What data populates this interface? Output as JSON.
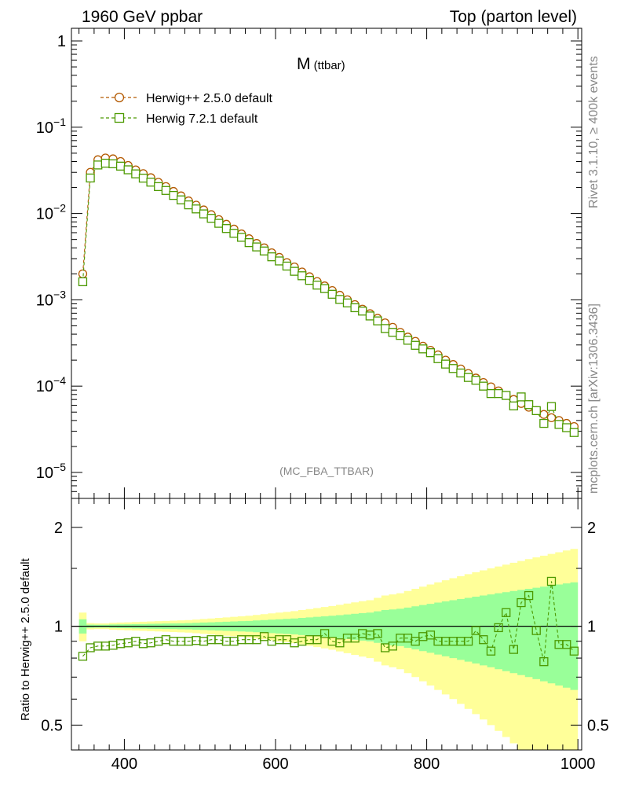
{
  "header": {
    "left": "1960 GeV ppbar",
    "right": "Top (parton level)"
  },
  "side": {
    "rivet": "Rivet 3.1.10, ≥ 400k events",
    "site": "mcplots.cern.ch [arXiv:1306.3436]"
  },
  "chart_data": [
    {
      "type": "line",
      "title_main": "M",
      "title_sub": " (ttbar)",
      "analysis": "(MC_FBA_TTBAR)",
      "yscale": "log",
      "xlim": [
        330,
        1005
      ],
      "ylim": [
        5e-06,
        1.4
      ],
      "ytick_labels": [
        {
          "base": "1",
          "exp": ""
        },
        {
          "base": "10",
          "exp": "−1"
        },
        {
          "base": "10",
          "exp": "−2"
        },
        {
          "base": "10",
          "exp": "−3"
        },
        {
          "base": "10",
          "exp": "−4"
        },
        {
          "base": "10",
          "exp": "−5"
        }
      ],
      "legend_position": "top-left",
      "series": [
        {
          "name": "Herwig++ 2.5.0 default",
          "color": "#b35900",
          "marker": "circle",
          "x": [
            345,
            355,
            365,
            375,
            385,
            395,
            405,
            415,
            425,
            435,
            445,
            455,
            465,
            475,
            485,
            495,
            505,
            515,
            525,
            535,
            545,
            555,
            565,
            575,
            585,
            595,
            605,
            615,
            625,
            635,
            645,
            655,
            665,
            675,
            685,
            695,
            705,
            715,
            725,
            735,
            745,
            755,
            765,
            775,
            785,
            795,
            805,
            815,
            825,
            835,
            845,
            855,
            865,
            875,
            885,
            895,
            905,
            915,
            925,
            935,
            945,
            955,
            965,
            975,
            985,
            995
          ],
          "y": [
            0.002,
            0.03,
            0.042,
            0.044,
            0.043,
            0.04,
            0.036,
            0.032,
            0.029,
            0.026,
            0.023,
            0.0205,
            0.018,
            0.016,
            0.014,
            0.0125,
            0.011,
            0.0097,
            0.0085,
            0.0075,
            0.0066,
            0.0058,
            0.0051,
            0.0045,
            0.004,
            0.0035,
            0.0031,
            0.0027,
            0.0024,
            0.0021,
            0.00185,
            0.00163,
            0.00145,
            0.00128,
            0.00113,
            0.001,
            0.00088,
            0.00078,
            0.00069,
            0.00061,
            0.00054,
            0.00048,
            0.00042,
            0.00037,
            0.00033,
            0.00029,
            0.00026,
            0.00023,
            0.0002,
            0.000178,
            0.000158,
            0.00014,
            0.000124,
            0.00011,
            9.8e-05,
            8.8e-05,
            7.8e-05,
            7e-05,
            6.3e-05,
            5.7e-05,
            5.2e-05,
            4.7e-05,
            4.3e-05,
            4e-05,
            3.7e-05,
            3.4e-05
          ]
        },
        {
          "name": "Herwig 7.2.1 default",
          "color": "#4c9900",
          "marker": "square",
          "x": [
            345,
            355,
            365,
            375,
            385,
            395,
            405,
            415,
            425,
            435,
            445,
            455,
            465,
            475,
            485,
            495,
            505,
            515,
            525,
            535,
            545,
            555,
            565,
            575,
            585,
            595,
            605,
            615,
            625,
            635,
            645,
            655,
            665,
            675,
            685,
            695,
            705,
            715,
            725,
            735,
            745,
            755,
            765,
            775,
            785,
            795,
            805,
            815,
            825,
            835,
            845,
            855,
            865,
            875,
            885,
            895,
            905,
            915,
            925,
            935,
            945,
            955,
            965,
            975,
            985,
            995
          ],
          "y": [
            0.00162,
            0.0258,
            0.0365,
            0.0383,
            0.0377,
            0.0354,
            0.0321,
            0.0288,
            0.0257,
            0.0231,
            0.0205,
            0.0185,
            0.0162,
            0.0144,
            0.0126,
            0.0113,
            0.0099,
            0.0088,
            0.0077,
            0.0067,
            0.0059,
            0.0053,
            0.0046,
            0.0041,
            0.00368,
            0.00315,
            0.00282,
            0.00246,
            0.00214,
            0.0019,
            0.00168,
            0.00148,
            0.00135,
            0.00116,
            0.00101,
            0.00092,
            0.00081,
            0.00074,
            0.00065,
            0.00057,
            0.000465,
            0.00042,
            0.000387,
            0.00034,
            0.000297,
            0.00027,
            0.000244,
            0.000208,
            0.00018,
            0.00016,
            0.000142,
            0.000126,
            0.000117,
            0.0001,
            8.2e-05,
            8.2e-05,
            7.8e-05,
            5.9e-05,
            7.5e-05,
            6.1e-05,
            5.2e-05,
            3.7e-05,
            5.8e-05,
            3.6e-05,
            3.3e-05,
            2.9e-05
          ]
        }
      ]
    },
    {
      "type": "line",
      "ylabel": "Ratio to Herwig++ 2.5.0 default",
      "ylim": [
        0.42,
        2.45
      ],
      "ytick_labels": [
        "2",
        "1",
        "0.5"
      ],
      "xtick_labels": [
        "400",
        "600",
        "800",
        "1000"
      ],
      "reference": 1.0,
      "band_inner_halfwidth": [
        0.05,
        0.011,
        0.01,
        0.01,
        0.012,
        0.013,
        0.014,
        0.015,
        0.016,
        0.017,
        0.018,
        0.019,
        0.02,
        0.021,
        0.022,
        0.024,
        0.026,
        0.028,
        0.03,
        0.032,
        0.034,
        0.036,
        0.038,
        0.041,
        0.044,
        0.047,
        0.05,
        0.053,
        0.056,
        0.06,
        0.064,
        0.068,
        0.072,
        0.076,
        0.081,
        0.086,
        0.091,
        0.096,
        0.1,
        0.11,
        0.12,
        0.125,
        0.13,
        0.14,
        0.15,
        0.16,
        0.17,
        0.18,
        0.19,
        0.2,
        0.21,
        0.22,
        0.23,
        0.24,
        0.25,
        0.26,
        0.27,
        0.28,
        0.29,
        0.3,
        0.31,
        0.32,
        0.33,
        0.34,
        0.35,
        0.36
      ],
      "band_outer_halfwidth": [
        0.1,
        0.022,
        0.02,
        0.02,
        0.024,
        0.026,
        0.028,
        0.03,
        0.032,
        0.034,
        0.036,
        0.038,
        0.04,
        0.042,
        0.044,
        0.048,
        0.052,
        0.056,
        0.06,
        0.064,
        0.068,
        0.072,
        0.076,
        0.082,
        0.088,
        0.094,
        0.1,
        0.106,
        0.112,
        0.12,
        0.128,
        0.136,
        0.144,
        0.152,
        0.162,
        0.172,
        0.182,
        0.192,
        0.2,
        0.22,
        0.24,
        0.25,
        0.26,
        0.28,
        0.3,
        0.32,
        0.34,
        0.36,
        0.38,
        0.4,
        0.42,
        0.44,
        0.46,
        0.48,
        0.5,
        0.52,
        0.54,
        0.56,
        0.58,
        0.6,
        0.62,
        0.64,
        0.66,
        0.68,
        0.7,
        0.72
      ],
      "series": [
        {
          "name": "Herwig 7.2.1 default",
          "color": "#4c9900",
          "marker": "square",
          "x": [
            345,
            355,
            365,
            375,
            385,
            395,
            405,
            415,
            425,
            435,
            445,
            455,
            465,
            475,
            485,
            495,
            505,
            515,
            525,
            535,
            545,
            555,
            565,
            575,
            585,
            595,
            605,
            615,
            625,
            635,
            645,
            655,
            665,
            675,
            685,
            695,
            705,
            715,
            725,
            735,
            745,
            755,
            765,
            775,
            785,
            795,
            805,
            815,
            825,
            835,
            845,
            855,
            865,
            875,
            885,
            895,
            905,
            915,
            925,
            935,
            945,
            955,
            965,
            975,
            985,
            995
          ],
          "y": [
            0.81,
            0.86,
            0.87,
            0.87,
            0.875,
            0.885,
            0.89,
            0.9,
            0.885,
            0.89,
            0.9,
            0.91,
            0.9,
            0.9,
            0.9,
            0.905,
            0.9,
            0.91,
            0.91,
            0.9,
            0.9,
            0.91,
            0.91,
            0.91,
            0.93,
            0.9,
            0.91,
            0.91,
            0.89,
            0.9,
            0.91,
            0.91,
            0.95,
            0.9,
            0.89,
            0.92,
            0.92,
            0.95,
            0.94,
            0.95,
            0.86,
            0.87,
            0.92,
            0.92,
            0.9,
            0.93,
            0.94,
            0.9,
            0.9,
            0.9,
            0.9,
            0.9,
            0.97,
            0.91,
            0.84,
            0.99,
            1.1,
            0.85,
            1.18,
            1.24,
            0.97,
            0.78,
            1.37,
            0.88,
            0.88,
            0.84
          ]
        }
      ]
    }
  ]
}
